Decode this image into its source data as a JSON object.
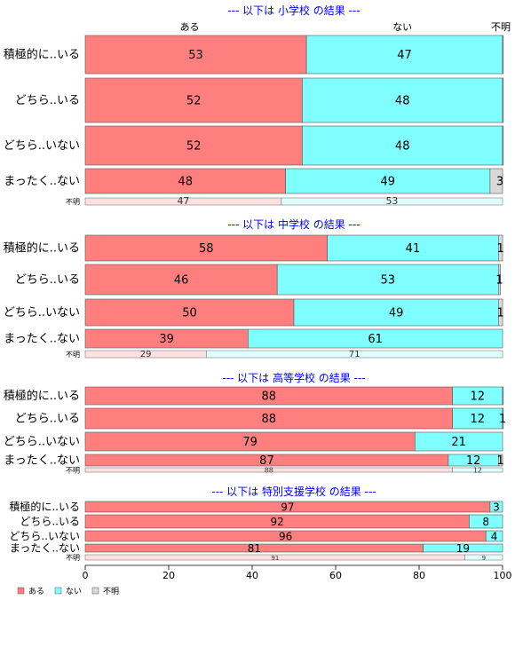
{
  "chart_data": {
    "type": "bar",
    "orientation": "horizontal",
    "stacked": true,
    "column_headers": [
      "ある",
      "ない",
      "不明"
    ],
    "xlim": [
      0,
      100
    ],
    "x_ticks": [
      0,
      20,
      40,
      60,
      80,
      100
    ],
    "grid": false,
    "legend_position": "bottom-left",
    "series": [
      {
        "name": "ある",
        "color": "#FF7F7F"
      },
      {
        "name": "ない",
        "color": "#7FFFFF"
      },
      {
        "name": "不明",
        "color": "#D9D9D9"
      }
    ],
    "panels": [
      {
        "title": "--- 以下は 小学校 の結果 ---",
        "categories": [
          "積極的に..いる",
          "どちら..いる",
          "どちら..いない",
          "まったく..ない"
        ],
        "values": [
          [
            53,
            47,
            0.4
          ],
          [
            52,
            48,
            0.2
          ],
          [
            52,
            48,
            0.1
          ],
          [
            48,
            49,
            3
          ]
        ],
        "labels": [
          [
            "53",
            "47",
            ""
          ],
          [
            "52",
            "48",
            ""
          ],
          [
            "52",
            "48",
            ""
          ],
          [
            "48",
            "49",
            "3"
          ]
        ],
        "unknown_row": {
          "label": "不明",
          "values": [
            47,
            53
          ],
          "labels": [
            "47",
            "53"
          ]
        }
      },
      {
        "title": "--- 以下は 中学校 の結果 ---",
        "categories": [
          "積極的に..いる",
          "どちら..いる",
          "どちら..いない",
          "まったく..ない"
        ],
        "values": [
          [
            58,
            41,
            1
          ],
          [
            46,
            53,
            0.5
          ],
          [
            50,
            49,
            1
          ],
          [
            39,
            61,
            0
          ]
        ],
        "labels": [
          [
            "58",
            "41",
            "1"
          ],
          [
            "46",
            "53",
            "1"
          ],
          [
            "50",
            "49",
            "1"
          ],
          [
            "39",
            "61",
            ""
          ]
        ],
        "unknown_row": {
          "label": "不明",
          "values": [
            29,
            71
          ],
          "labels": [
            "29",
            "71"
          ]
        }
      },
      {
        "title": "--- 以下は 高等学校 の結果 ---",
        "categories": [
          "積極的に..いる",
          "どちら..いる",
          "どちら..いない",
          "まったく..ない"
        ],
        "values": [
          [
            88,
            12,
            0.4
          ],
          [
            88,
            12,
            0.7
          ],
          [
            79,
            21,
            0
          ],
          [
            87,
            12,
            1
          ]
        ],
        "labels": [
          [
            "88",
            "12",
            ""
          ],
          [
            "88",
            "12",
            "1"
          ],
          [
            "79",
            "21",
            ""
          ],
          [
            "87",
            "12",
            "1"
          ]
        ],
        "unknown_row": {
          "label": "不明",
          "values": [
            88,
            12
          ],
          "labels": [
            "88",
            "12"
          ]
        }
      },
      {
        "title": "--- 以下は 特別支援学校 の結果 ---",
        "categories": [
          "積極的に..いる",
          "どちら..いる",
          "どちら..いない",
          "まったく..ない"
        ],
        "values": [
          [
            97,
            3,
            0
          ],
          [
            92,
            8,
            0
          ],
          [
            96,
            4,
            0
          ],
          [
            81,
            19,
            0
          ]
        ],
        "labels": [
          [
            "97",
            "3",
            ""
          ],
          [
            "92",
            "8",
            ""
          ],
          [
            "96",
            "4",
            ""
          ],
          [
            "81",
            "19",
            ""
          ]
        ],
        "unknown_row": {
          "label": "不明",
          "values": [
            91,
            9
          ],
          "labels": [
            "91",
            "9"
          ]
        }
      }
    ]
  }
}
